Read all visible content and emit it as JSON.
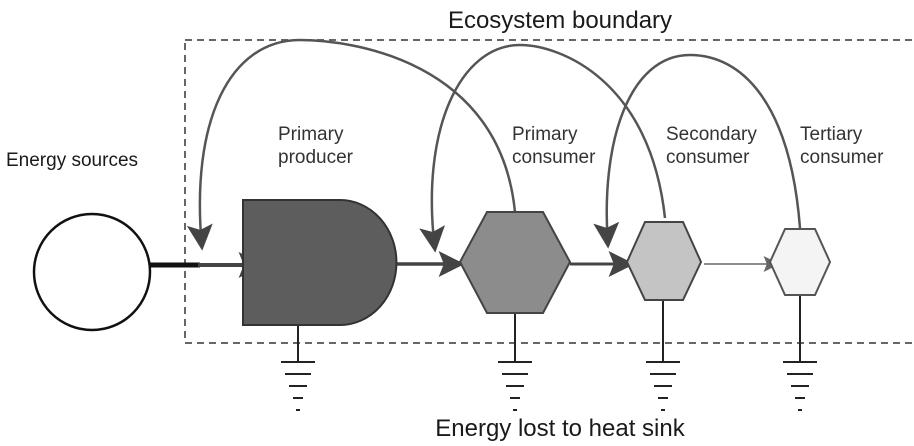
{
  "title": "Ecosystem boundary",
  "source": {
    "label": "Energy sources"
  },
  "nodes": [
    {
      "label": [
        "Primary",
        "producer"
      ]
    },
    {
      "label": [
        "Primary",
        "consumer"
      ]
    },
    {
      "label": [
        "Secondary",
        "consumer"
      ]
    },
    {
      "label": [
        "Tertiary",
        "consumer"
      ]
    }
  ],
  "footer": "Energy lost to heat sink"
}
